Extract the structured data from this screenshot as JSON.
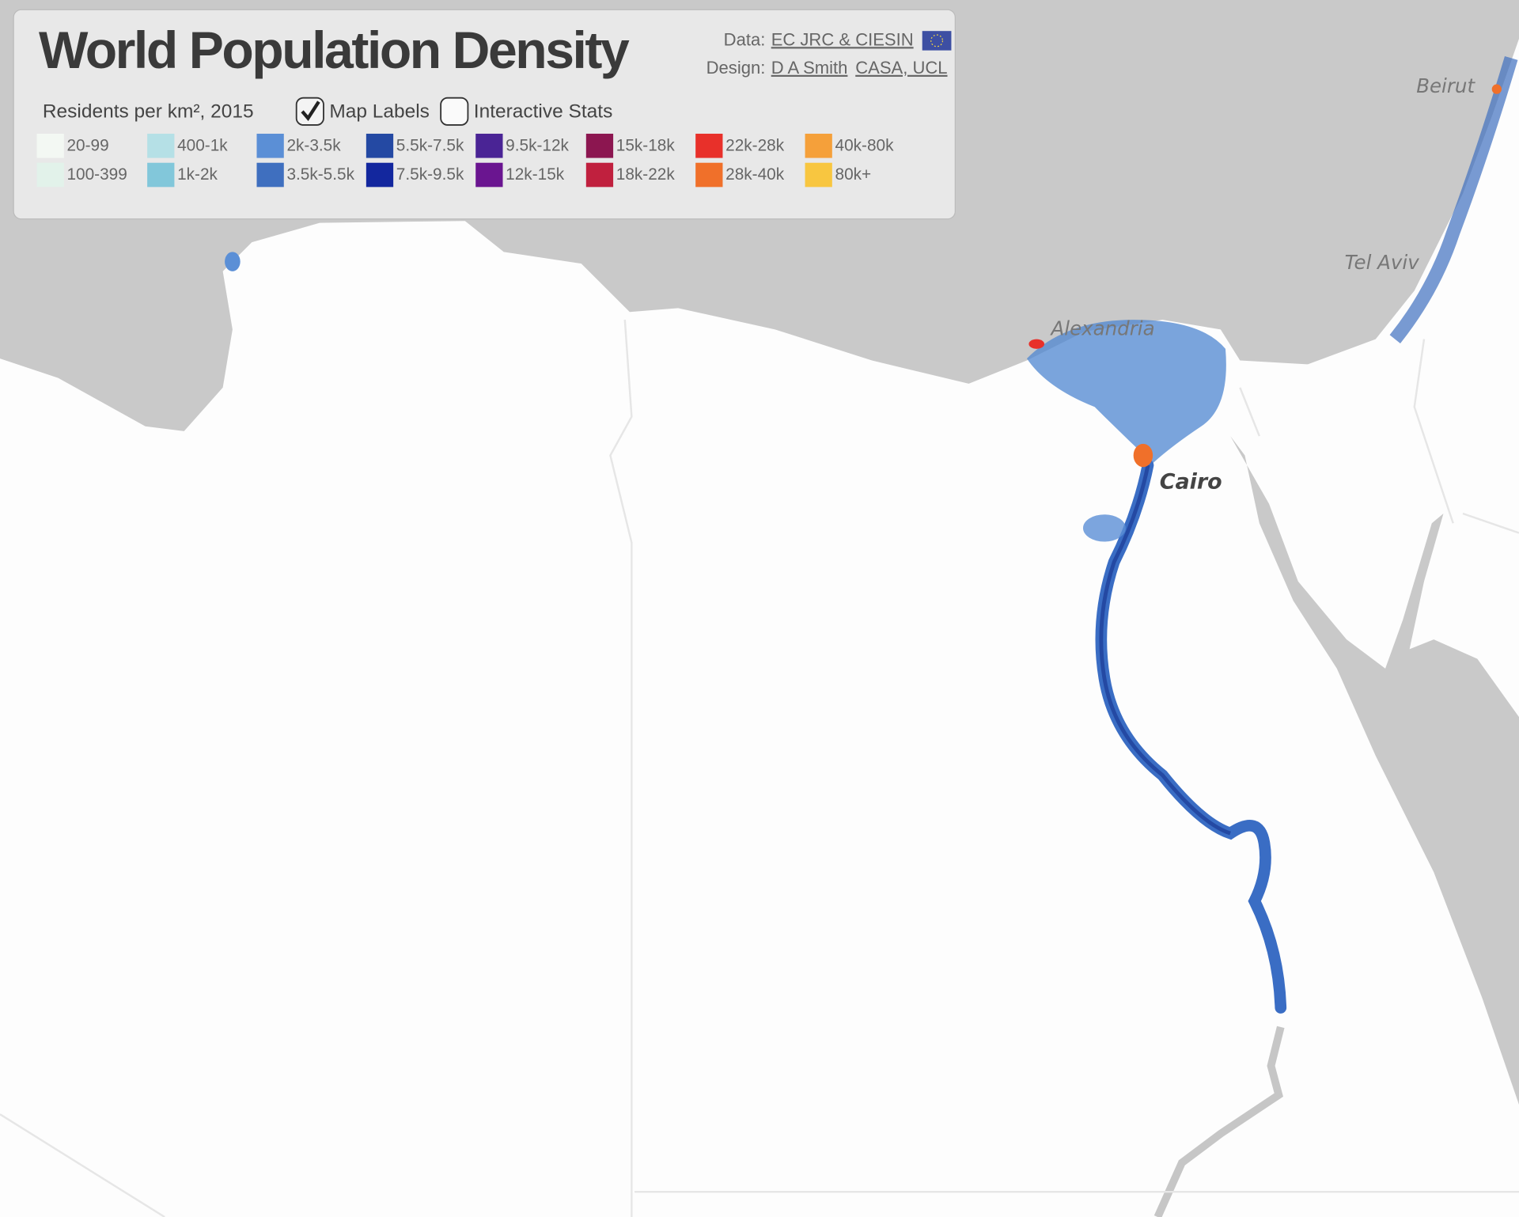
{
  "header": {
    "title": "World Population Density",
    "data_label": "Data:",
    "data_link": "EC JRC & CIESIN",
    "design_label": "Design:",
    "design_links": [
      "D A Smith",
      "CASA, UCL"
    ]
  },
  "controls": [
    {
      "label": "Map Labels",
      "checked": true
    },
    {
      "label": "Interactive Stats",
      "checked": false
    }
  ],
  "legend": {
    "title": "Residents per km², 2015",
    "items": [
      {
        "label": "20-99",
        "color": "#f3f8f3"
      },
      {
        "label": "100-399",
        "color": "#e2f2ea"
      },
      {
        "label": "400-1k",
        "color": "#b5e0e6"
      },
      {
        "label": "1k-2k",
        "color": "#82c7da"
      },
      {
        "label": "2k-3.5k",
        "color": "#5b8fd6"
      },
      {
        "label": "3.5k-5.5k",
        "color": "#3f6fbf"
      },
      {
        "label": "5.5k-7.5k",
        "color": "#2449a3"
      },
      {
        "label": "7.5k-9.5k",
        "color": "#13279e"
      },
      {
        "label": "9.5k-12k",
        "color": "#4a2495"
      },
      {
        "label": "12k-15k",
        "color": "#6a1590"
      },
      {
        "label": "15k-18k",
        "color": "#8c1650"
      },
      {
        "label": "18k-22k",
        "color": "#c0203e"
      },
      {
        "label": "22k-28k",
        "color": "#e8302a"
      },
      {
        "label": "28k-40k",
        "color": "#f0702a"
      },
      {
        "label": "40k-80k",
        "color": "#f5a03a"
      },
      {
        "label": "80k+",
        "color": "#f8c640"
      }
    ]
  },
  "map_labels": [
    "Beirut",
    "Tel Aviv",
    "Alexandria",
    "Cairo"
  ]
}
